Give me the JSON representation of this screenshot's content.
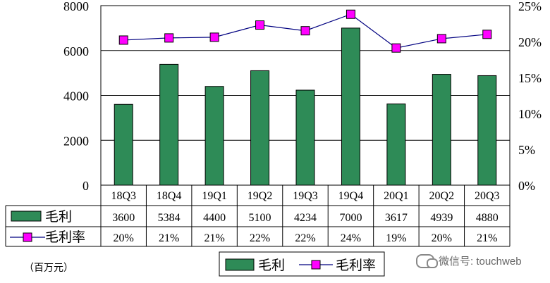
{
  "chart_data": {
    "type": "bar",
    "categories": [
      "18Q3",
      "18Q4",
      "19Q1",
      "19Q2",
      "19Q3",
      "19Q4",
      "20Q1",
      "20Q2",
      "20Q3"
    ],
    "series": [
      {
        "name": "毛利",
        "type": "bar",
        "axis": "left",
        "color": "#2e8b57",
        "values": [
          3600,
          5384,
          4400,
          5100,
          4234,
          7000,
          3617,
          4939,
          4880
        ],
        "labels": [
          "3600",
          "5384",
          "4400",
          "5100",
          "4234",
          "7000",
          "3617",
          "4939",
          "4880"
        ]
      },
      {
        "name": "毛利率",
        "type": "line",
        "axis": "right",
        "color": "#ff00ff",
        "values": [
          20.2,
          20.5,
          20.6,
          22.3,
          21.5,
          23.8,
          19.1,
          20.4,
          21.0
        ],
        "labels": [
          "20%",
          "21%",
          "21%",
          "22%",
          "22%",
          "24%",
          "19%",
          "20%",
          "21%"
        ]
      }
    ],
    "y_left": {
      "ylim": [
        0,
        8000
      ],
      "ticks": [
        "0",
        "2000",
        "4000",
        "6000",
        "8000"
      ]
    },
    "y_right": {
      "ylim": [
        0,
        25
      ],
      "ticks": [
        "0%",
        "5%",
        "10%",
        "15%",
        "20%",
        "25%"
      ]
    },
    "grid": true,
    "legend": "bottom-center",
    "unit_note": "（百万元）",
    "watermark": "微信号: touchweb"
  }
}
